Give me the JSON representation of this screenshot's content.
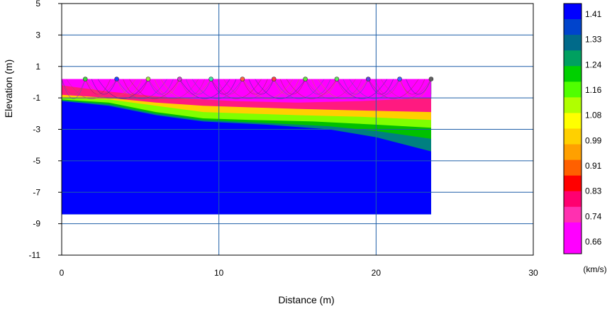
{
  "chart_data": {
    "type": "heatmap",
    "title": "",
    "xlabel": "Distance (m)",
    "ylabel": "Elevation (m)",
    "xlim": [
      0,
      30
    ],
    "ylim": [
      -11,
      5
    ],
    "x_ticks": [
      "0",
      "10",
      "20",
      "30"
    ],
    "y_ticks": [
      "5",
      "3",
      "1",
      "-1",
      "-3",
      "-5",
      "-7",
      "-9",
      "-11"
    ],
    "grid": true,
    "grid_color": "#1f5fa8",
    "model_extent": {
      "x": [
        0,
        23.5
      ],
      "y_bottom": -8.4,
      "y_surface": 0.2
    },
    "legend": {
      "placement": "right",
      "unit": "(km/s)",
      "labels": [
        "1.41",
        "1.33",
        "1.24",
        "1.16",
        "1.08",
        "0.99",
        "0.91",
        "0.83",
        "0.74",
        "0.66"
      ],
      "colors": [
        "#0000ff",
        "#0044cc",
        "#006a8a",
        "#00a060",
        "#00d000",
        "#50ff00",
        "#b0ff00",
        "#ffff00",
        "#ffd000",
        "#ffa000",
        "#ff6000",
        "#ff0000",
        "#ff0070",
        "#ff30b0",
        "#ff00ff",
        "#ff00ff"
      ]
    },
    "velocity_layers": [
      {
        "name": "0.66",
        "color": "#ff00ff",
        "top": [
          [
            0,
            0.2
          ],
          [
            23.5,
            0.2
          ]
        ]
      },
      {
        "name": "0.74",
        "color": "#ff1a80",
        "top": [
          [
            0,
            -0.2
          ],
          [
            3,
            -0.6
          ],
          [
            7,
            -1.0
          ],
          [
            11,
            -1.2
          ],
          [
            15,
            -1.3
          ],
          [
            19,
            -1.2
          ],
          [
            23.5,
            -1.0
          ]
        ]
      },
      {
        "name": "0.91",
        "color": "#ffd000",
        "top": [
          [
            0,
            -0.8
          ],
          [
            3,
            -1.0
          ],
          [
            6,
            -1.3
          ],
          [
            9,
            -1.5
          ],
          [
            12,
            -1.6
          ],
          [
            15,
            -1.7
          ],
          [
            19,
            -1.8
          ],
          [
            23.5,
            -1.9
          ]
        ]
      },
      {
        "name": "1.08",
        "color": "#80ff00",
        "top": [
          [
            0,
            -1.0
          ],
          [
            3,
            -1.1
          ],
          [
            6,
            -1.5
          ],
          [
            9,
            -1.9
          ],
          [
            12,
            -2.0
          ],
          [
            15,
            -2.1
          ],
          [
            19,
            -2.2
          ],
          [
            23.5,
            -2.4
          ]
        ]
      },
      {
        "name": "1.24",
        "color": "#00c000",
        "top": [
          [
            0,
            -1.1
          ],
          [
            3,
            -1.3
          ],
          [
            6,
            -1.9
          ],
          [
            9,
            -2.3
          ],
          [
            12,
            -2.4
          ],
          [
            16,
            -2.5
          ],
          [
            20,
            -2.7
          ],
          [
            23.5,
            -2.9
          ]
        ]
      },
      {
        "name": "1.33",
        "color": "#008080",
        "top": [
          [
            0,
            -1.15
          ],
          [
            3,
            -1.4
          ],
          [
            6,
            -2.0
          ],
          [
            9,
            -2.4
          ],
          [
            13,
            -2.6
          ],
          [
            17,
            -2.8
          ],
          [
            20,
            -3.1
          ],
          [
            23.5,
            -3.6
          ]
        ]
      },
      {
        "name": "1.41",
        "color": "#0000ff",
        "top": [
          [
            0,
            -1.2
          ],
          [
            3,
            -1.5
          ],
          [
            6,
            -2.1
          ],
          [
            9,
            -2.5
          ],
          [
            13,
            -2.7
          ],
          [
            17,
            -3.0
          ],
          [
            20,
            -3.5
          ],
          [
            23.5,
            -4.4
          ]
        ]
      }
    ],
    "sources": [
      {
        "x": 1.5,
        "y": 0.2,
        "color": "#40d040"
      },
      {
        "x": 3.5,
        "y": 0.2,
        "color": "#2040ff"
      },
      {
        "x": 5.5,
        "y": 0.2,
        "color": "#a0e040"
      },
      {
        "x": 7.5,
        "y": 0.2,
        "color": "#d040d0"
      },
      {
        "x": 9.5,
        "y": 0.2,
        "color": "#40e0a0"
      },
      {
        "x": 11.5,
        "y": 0.2,
        "color": "#ff6040"
      },
      {
        "x": 13.5,
        "y": 0.2,
        "color": "#ff4040"
      },
      {
        "x": 15.5,
        "y": 0.2,
        "color": "#60e040"
      },
      {
        "x": 17.5,
        "y": 0.2,
        "color": "#60e060"
      },
      {
        "x": 19.5,
        "y": 0.2,
        "color": "#6040e0"
      },
      {
        "x": 21.5,
        "y": 0.2,
        "color": "#4060ff"
      },
      {
        "x": 23.5,
        "y": 0.2,
        "color": "#606060"
      }
    ]
  }
}
